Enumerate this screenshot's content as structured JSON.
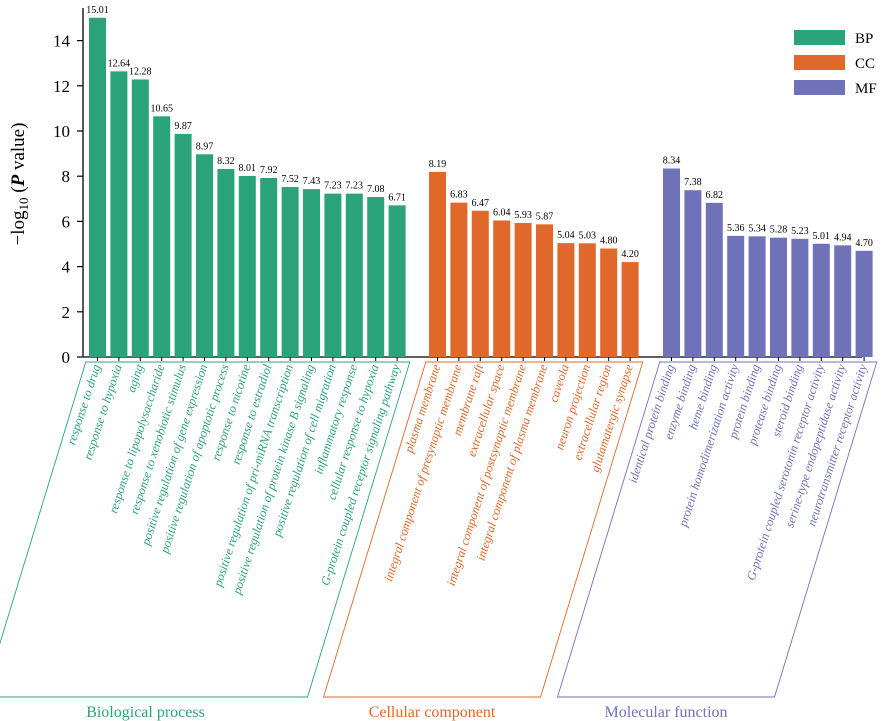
{
  "chart_data": {
    "type": "bar",
    "title": "",
    "ylabel_prefix": "−log",
    "ylabel_sub": "10",
    "ylabel_open": " (",
    "ylabel_p": "P",
    "ylabel_close": " value)",
    "xlabel": "",
    "ylim": [
      0,
      15
    ],
    "yticks": [
      0,
      2,
      4,
      6,
      8,
      10,
      12,
      14
    ],
    "legend_position": "top-right",
    "series": [
      {
        "key": "bp",
        "name": "BP",
        "group_label": "Biological process",
        "color": "#2ba37a",
        "categories": [
          "response to drug",
          "response to hypoxia",
          "aging",
          "response to lipopolysaccharide",
          "response to xenobiotic stimulus",
          "positive regulation of gene expression",
          "positive regulation of apoptotic process",
          "response to nicotine",
          "response to estradiol",
          "positive regulation of pri-miRNA transcription",
          "positive regulation of protein kinase B signaling",
          "positive regulation of cell migration",
          "inflammatory response",
          "cellular response to hypoxia",
          "G-protein coupled receptor signaling pathway"
        ],
        "values": [
          15.01,
          12.64,
          12.28,
          10.65,
          9.87,
          8.97,
          8.32,
          8.01,
          7.92,
          7.52,
          7.43,
          7.23,
          7.23,
          7.08,
          6.71
        ]
      },
      {
        "key": "cc",
        "name": "CC",
        "group_label": "Cellular component",
        "color": "#e0682a",
        "categories": [
          "plasma membrane",
          "integral component of presynaptic membrane",
          "membrane raft",
          "extracellular space",
          "integral component of postsynaptic membrane",
          "integral component of plasma membrane",
          "caveola",
          "neuron projection",
          "extracellular region",
          "glutamatergic synapse"
        ],
        "values": [
          8.19,
          6.83,
          6.47,
          6.04,
          5.93,
          5.87,
          5.04,
          5.03,
          4.8,
          4.2
        ]
      },
      {
        "key": "mf",
        "name": "MF",
        "group_label": "Molecular function",
        "color": "#6f72b8",
        "categories": [
          "identical protein binding",
          "enzyme binding",
          "heme binding",
          "protein homodimerization activity",
          "protein binding",
          "protease binding",
          "steroid binding",
          "G-protein coupled serotonin receptor activity",
          "serine-type endopeptidase activity",
          "neurotransmitter receptor activity"
        ],
        "values": [
          8.34,
          7.38,
          6.82,
          5.36,
          5.34,
          5.28,
          5.23,
          5.01,
          4.94,
          4.7
        ]
      }
    ]
  }
}
